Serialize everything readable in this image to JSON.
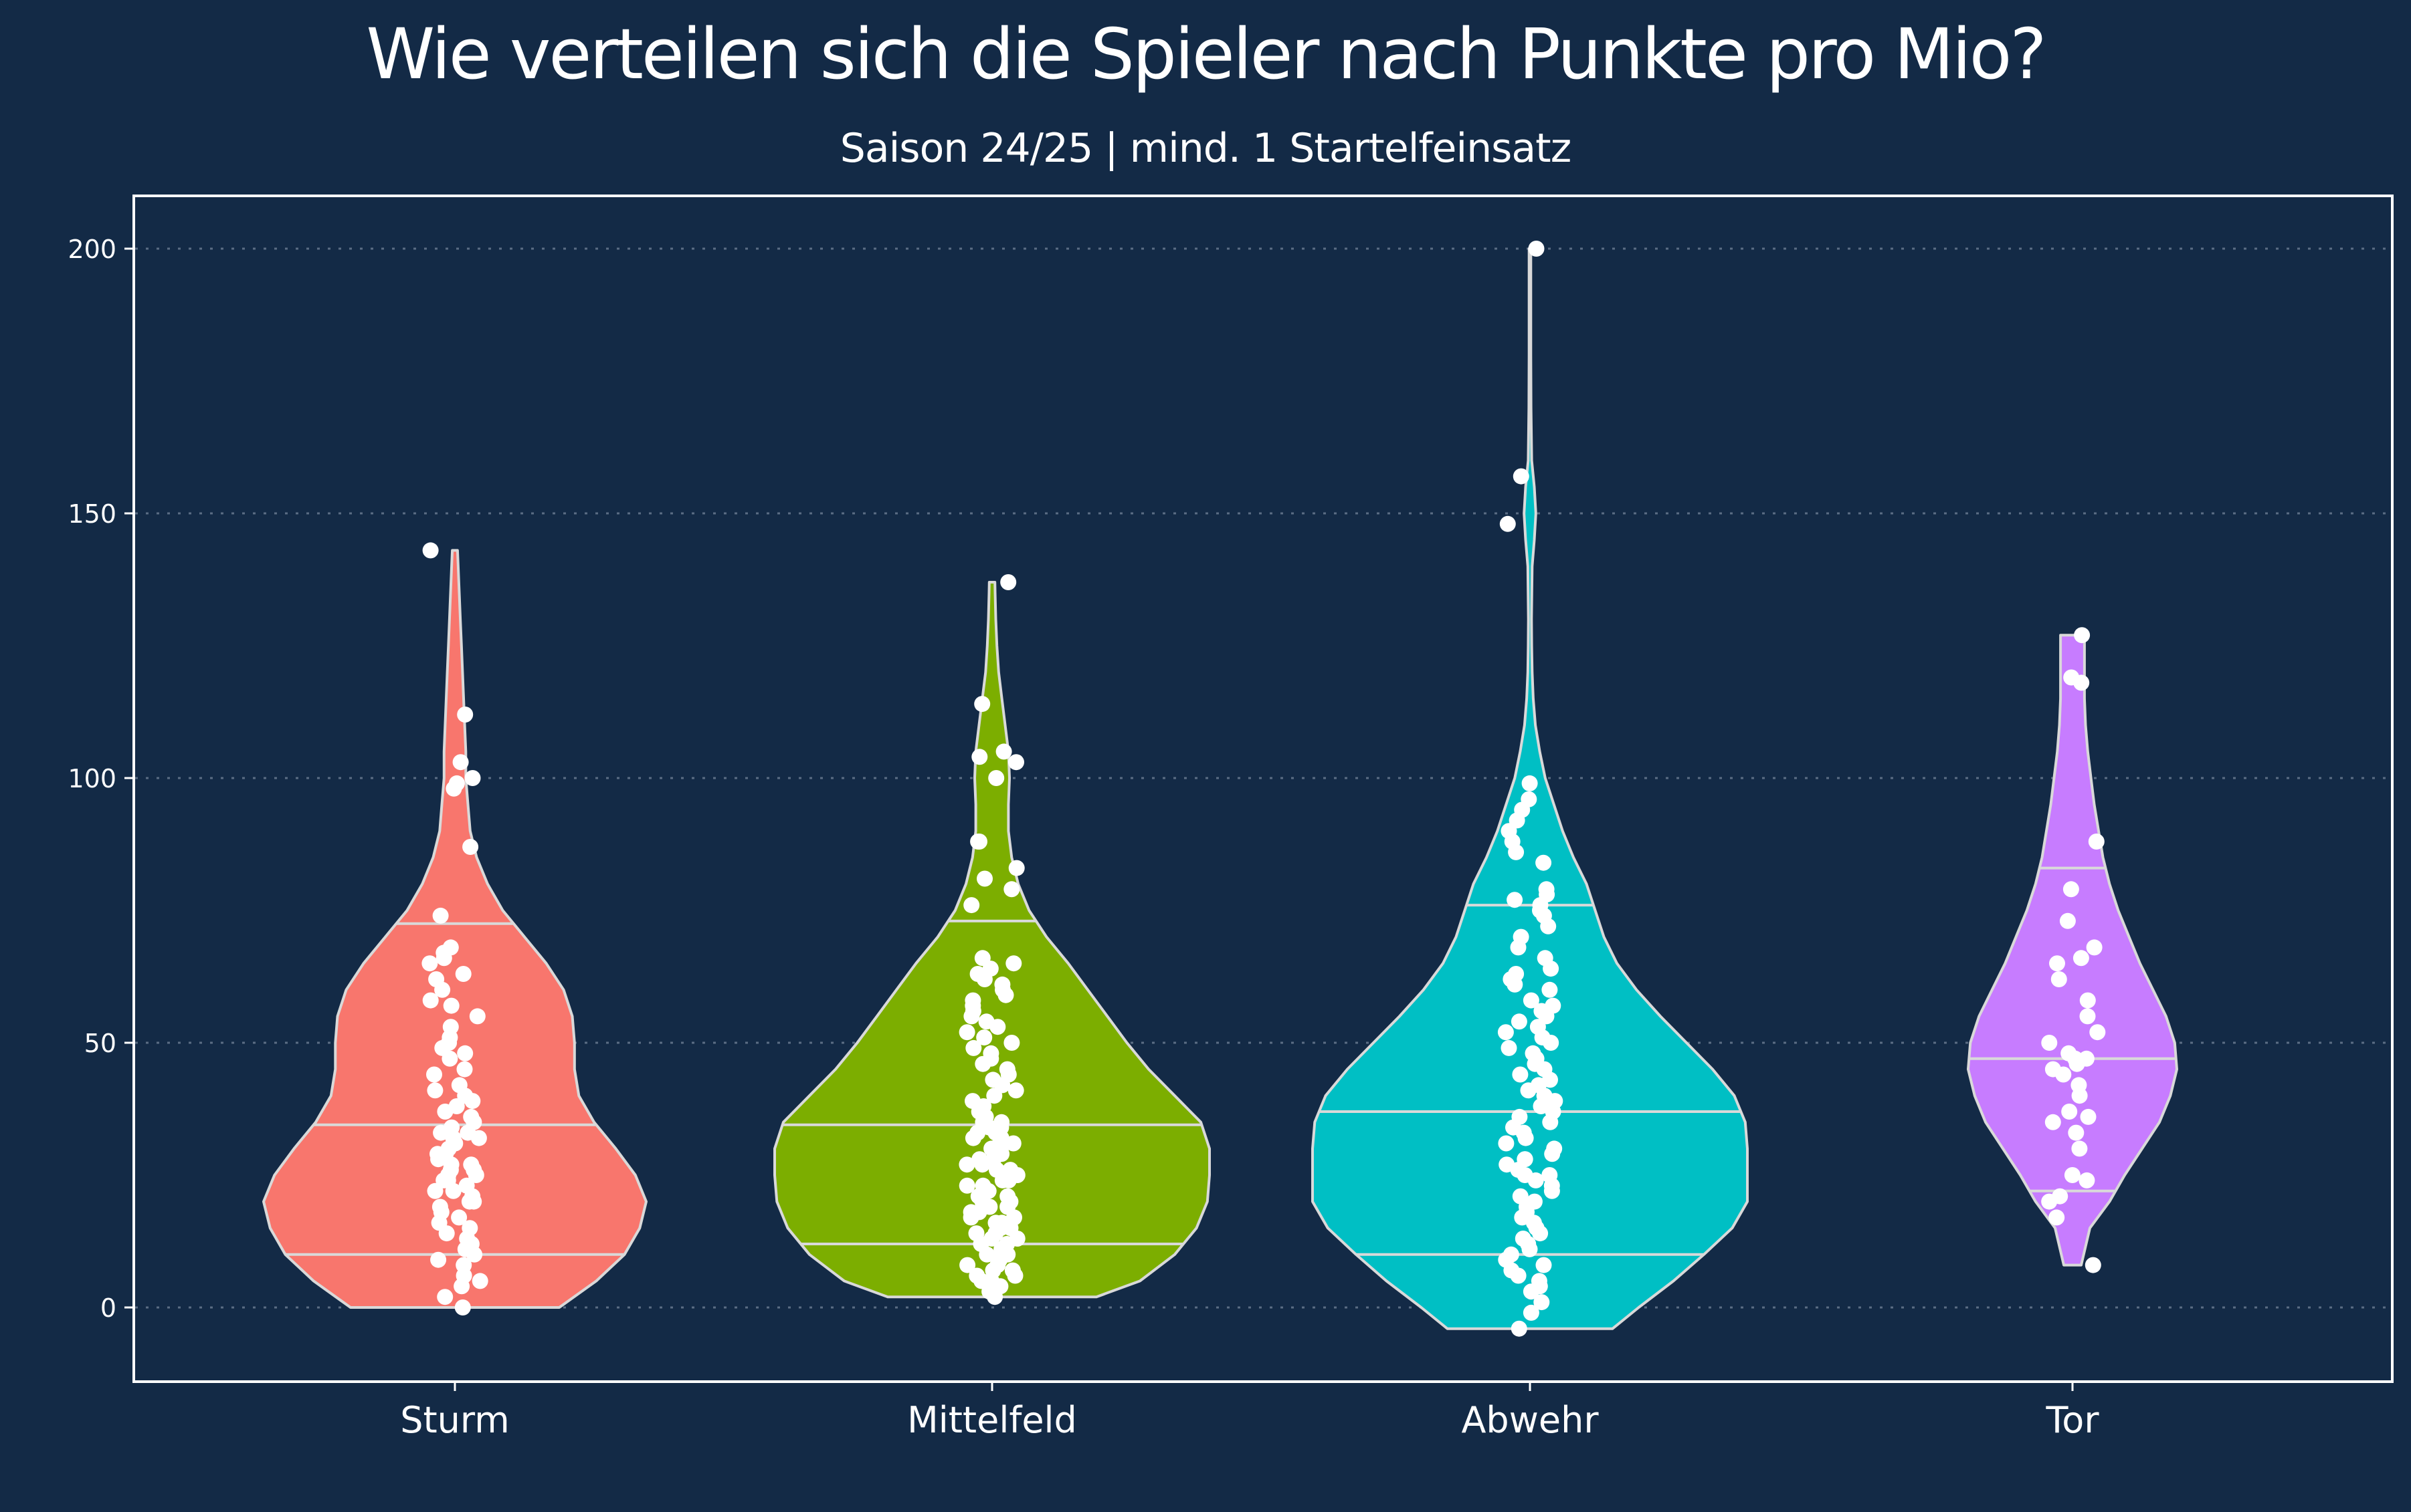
{
  "chart_data": {
    "type": "violin",
    "title": "Wie verteilen sich die Spieler nach Punkte pro Mio?",
    "subtitle": "Saison 24/25 | mind. 1 Startelfeinsatz",
    "xlabel": "",
    "ylabel": "",
    "ylim": [
      -14,
      210
    ],
    "yticks": [
      0,
      50,
      100,
      150,
      200
    ],
    "grid": "horizontal dotted",
    "legend": "none",
    "categories": [
      "Sturm",
      "Mittelfeld",
      "Abwehr",
      "Tor"
    ],
    "colors": {
      "Sturm": "#f8766d",
      "Mittelfeld": "#7cae00",
      "Abwehr": "#00bfc4",
      "Tor": "#c77cff",
      "background": "#132a46",
      "points": "#ffffff",
      "outline": "#d9d9d9"
    },
    "series": [
      {
        "category": "Sturm",
        "min": 0,
        "max": 143,
        "quantiles": [
          10,
          34.5,
          72.5
        ],
        "profile": [
          [
            0,
            0.48
          ],
          [
            5,
            0.65
          ],
          [
            10,
            0.78
          ],
          [
            15,
            0.85
          ],
          [
            20,
            0.88
          ],
          [
            25,
            0.83
          ],
          [
            30,
            0.74
          ],
          [
            35,
            0.64
          ],
          [
            40,
            0.57
          ],
          [
            45,
            0.55
          ],
          [
            50,
            0.55
          ],
          [
            55,
            0.54
          ],
          [
            60,
            0.5
          ],
          [
            65,
            0.42
          ],
          [
            70,
            0.32
          ],
          [
            75,
            0.22
          ],
          [
            80,
            0.15
          ],
          [
            85,
            0.1
          ],
          [
            90,
            0.07
          ],
          [
            95,
            0.06
          ],
          [
            100,
            0.05
          ],
          [
            105,
            0.05
          ],
          [
            110,
            0.045
          ],
          [
            115,
            0.04
          ],
          [
            120,
            0.035
          ],
          [
            125,
            0.03
          ],
          [
            130,
            0.025
          ],
          [
            135,
            0.02
          ],
          [
            140,
            0.015
          ],
          [
            143,
            0.012
          ]
        ],
        "points": [
          0,
          2,
          4,
          5,
          6,
          8,
          9,
          10,
          11,
          12,
          13,
          14,
          15,
          16,
          17,
          18,
          19,
          20,
          20,
          21,
          22,
          22,
          23,
          24,
          24,
          25,
          25,
          26,
          26,
          27,
          27,
          28,
          29,
          29,
          30,
          31,
          32,
          32,
          33,
          33,
          34,
          35,
          36,
          37,
          38,
          39,
          40,
          41,
          42,
          44,
          45,
          47,
          48,
          49,
          50,
          51,
          53,
          55,
          57,
          58,
          60,
          62,
          63,
          65,
          66,
          67,
          68,
          74,
          87,
          98,
          99,
          100,
          103,
          112,
          143
        ]
      },
      {
        "category": "Mittelfeld",
        "min": 2,
        "max": 137,
        "quantiles": [
          12,
          34.5,
          73
        ],
        "profile": [
          [
            2,
            0.48
          ],
          [
            5,
            0.68
          ],
          [
            10,
            0.84
          ],
          [
            15,
            0.94
          ],
          [
            20,
            0.99
          ],
          [
            25,
            1.0
          ],
          [
            30,
            1.0
          ],
          [
            35,
            0.96
          ],
          [
            40,
            0.84
          ],
          [
            45,
            0.72
          ],
          [
            50,
            0.62
          ],
          [
            55,
            0.53
          ],
          [
            60,
            0.44
          ],
          [
            65,
            0.35
          ],
          [
            70,
            0.25
          ],
          [
            75,
            0.17
          ],
          [
            80,
            0.12
          ],
          [
            85,
            0.09
          ],
          [
            90,
            0.075
          ],
          [
            95,
            0.075
          ],
          [
            100,
            0.08
          ],
          [
            105,
            0.075
          ],
          [
            110,
            0.06
          ],
          [
            115,
            0.045
          ],
          [
            120,
            0.03
          ],
          [
            125,
            0.022
          ],
          [
            130,
            0.017
          ],
          [
            135,
            0.014
          ],
          [
            137,
            0.013
          ]
        ],
        "points": [
          2,
          3,
          4,
          4,
          5,
          5,
          6,
          6,
          7,
          7,
          8,
          8,
          9,
          9,
          10,
          10,
          11,
          12,
          12,
          13,
          13,
          14,
          14,
          15,
          15,
          16,
          16,
          17,
          17,
          18,
          18,
          19,
          19,
          20,
          20,
          21,
          21,
          22,
          22,
          23,
          23,
          24,
          24,
          25,
          25,
          26,
          26,
          27,
          27,
          28,
          28,
          29,
          29,
          30,
          30,
          31,
          31,
          32,
          32,
          33,
          33,
          34,
          34,
          35,
          35,
          36,
          36,
          37,
          38,
          39,
          40,
          41,
          42,
          43,
          44,
          45,
          46,
          47,
          48,
          49,
          50,
          51,
          52,
          53,
          54,
          55,
          56,
          57,
          58,
          59,
          60,
          61,
          62,
          63,
          64,
          65,
          66,
          76,
          79,
          81,
          83,
          88,
          88,
          100,
          103,
          104,
          105,
          114,
          137
        ]
      },
      {
        "category": "Abwehr",
        "min": -4,
        "max": 200,
        "quantiles": [
          10,
          37,
          76
        ],
        "profile": [
          [
            -4,
            0.38
          ],
          [
            0,
            0.5
          ],
          [
            5,
            0.66
          ],
          [
            10,
            0.8
          ],
          [
            15,
            0.93
          ],
          [
            20,
            1.0
          ],
          [
            25,
            1.0
          ],
          [
            30,
            1.0
          ],
          [
            35,
            0.99
          ],
          [
            40,
            0.94
          ],
          [
            45,
            0.84
          ],
          [
            50,
            0.72
          ],
          [
            55,
            0.6
          ],
          [
            60,
            0.49
          ],
          [
            65,
            0.4
          ],
          [
            70,
            0.34
          ],
          [
            75,
            0.3
          ],
          [
            80,
            0.26
          ],
          [
            85,
            0.2
          ],
          [
            90,
            0.15
          ],
          [
            95,
            0.11
          ],
          [
            100,
            0.07
          ],
          [
            105,
            0.045
          ],
          [
            110,
            0.025
          ],
          [
            115,
            0.015
          ],
          [
            120,
            0.01
          ],
          [
            125,
            0.008
          ],
          [
            130,
            0.007
          ],
          [
            140,
            0.01
          ],
          [
            145,
            0.02
          ],
          [
            150,
            0.027
          ],
          [
            155,
            0.02
          ],
          [
            160,
            0.008
          ],
          [
            170,
            0.005
          ],
          [
            180,
            0.004
          ],
          [
            190,
            0.004
          ],
          [
            200,
            0.004
          ]
        ],
        "points": [
          -4,
          -1,
          1,
          3,
          4,
          5,
          6,
          7,
          8,
          9,
          10,
          11,
          12,
          13,
          14,
          15,
          16,
          17,
          18,
          19,
          20,
          21,
          22,
          23,
          24,
          25,
          25,
          26,
          27,
          28,
          28,
          29,
          30,
          31,
          32,
          33,
          34,
          35,
          36,
          37,
          38,
          39,
          40,
          41,
          42,
          43,
          44,
          45,
          46,
          47,
          48,
          49,
          50,
          51,
          52,
          53,
          54,
          55,
          56,
          57,
          58,
          60,
          61,
          62,
          63,
          64,
          66,
          68,
          70,
          72,
          74,
          75,
          76,
          77,
          78,
          79,
          84,
          86,
          88,
          90,
          92,
          94,
          96,
          99,
          148,
          157,
          200
        ]
      },
      {
        "category": "Tor",
        "min": 8,
        "max": 127,
        "quantiles": [
          22,
          47,
          83
        ],
        "profile": [
          [
            8,
            0.04
          ],
          [
            15,
            0.08
          ],
          [
            20,
            0.17
          ],
          [
            25,
            0.24
          ],
          [
            30,
            0.32
          ],
          [
            35,
            0.4
          ],
          [
            40,
            0.45
          ],
          [
            45,
            0.48
          ],
          [
            50,
            0.47
          ],
          [
            55,
            0.43
          ],
          [
            60,
            0.37
          ],
          [
            65,
            0.31
          ],
          [
            70,
            0.26
          ],
          [
            75,
            0.21
          ],
          [
            80,
            0.17
          ],
          [
            85,
            0.14
          ],
          [
            90,
            0.12
          ],
          [
            95,
            0.1
          ],
          [
            100,
            0.085
          ],
          [
            105,
            0.07
          ],
          [
            110,
            0.06
          ],
          [
            115,
            0.055
          ],
          [
            120,
            0.055
          ],
          [
            125,
            0.055
          ],
          [
            127,
            0.055
          ]
        ],
        "points": [
          8,
          17,
          20,
          21,
          24,
          25,
          30,
          33,
          35,
          36,
          37,
          40,
          42,
          44,
          45,
          46,
          47,
          47,
          48,
          50,
          52,
          55,
          58,
          62,
          65,
          66,
          68,
          73,
          79,
          88,
          118,
          119,
          127
        ]
      }
    ]
  }
}
